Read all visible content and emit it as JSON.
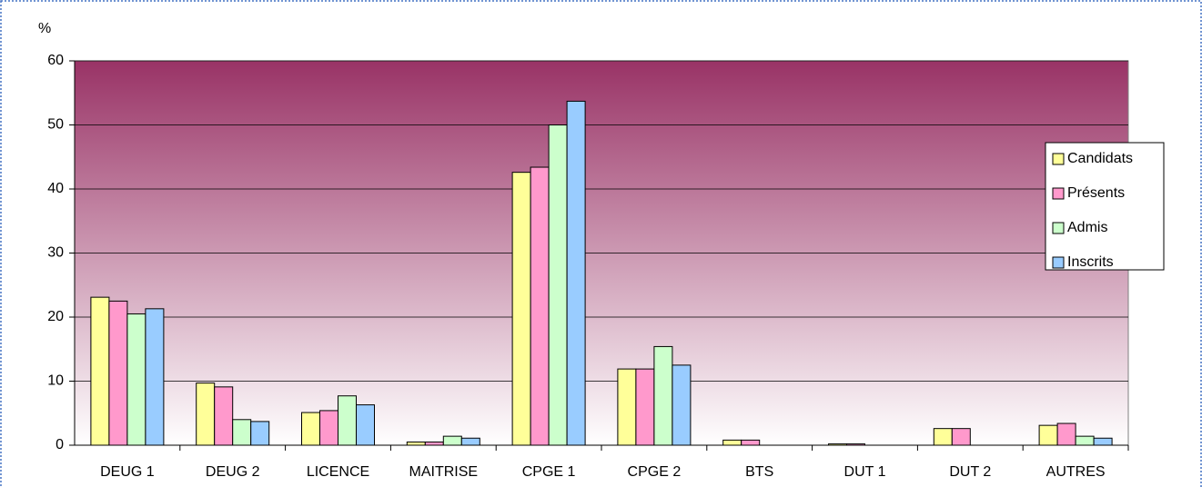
{
  "chart_data": {
    "type": "bar",
    "y_label": "%",
    "categories": [
      "DEUG 1",
      "DEUG 2",
      "LICENCE",
      "MAITRISE",
      "CPGE 1",
      "CPGE 2",
      "BTS",
      "DUT 1",
      "DUT 2",
      "AUTRES"
    ],
    "series": [
      {
        "name": "Candidats",
        "color": "#ffff99",
        "values": [
          23.1,
          9.7,
          5.1,
          0.5,
          42.6,
          11.9,
          0.8,
          0.2,
          2.6,
          3.1
        ]
      },
      {
        "name": "Présents",
        "color": "#ff99cc",
        "values": [
          22.5,
          9.1,
          5.4,
          0.5,
          43.4,
          11.9,
          0.8,
          0.2,
          2.6,
          3.4
        ]
      },
      {
        "name": "Admis",
        "color": "#ccffcc",
        "values": [
          20.5,
          4.0,
          7.7,
          1.4,
          50.0,
          15.4,
          0,
          0,
          0,
          1.4
        ]
      },
      {
        "name": "Inscrits",
        "color": "#99ccff",
        "values": [
          21.3,
          3.7,
          6.3,
          1.1,
          53.7,
          12.5,
          0,
          0,
          0,
          1.1
        ]
      }
    ],
    "ylim": [
      0,
      60
    ],
    "yticks": [
      0,
      10,
      20,
      30,
      40,
      50,
      60
    ],
    "grid": true,
    "legend": "right"
  }
}
